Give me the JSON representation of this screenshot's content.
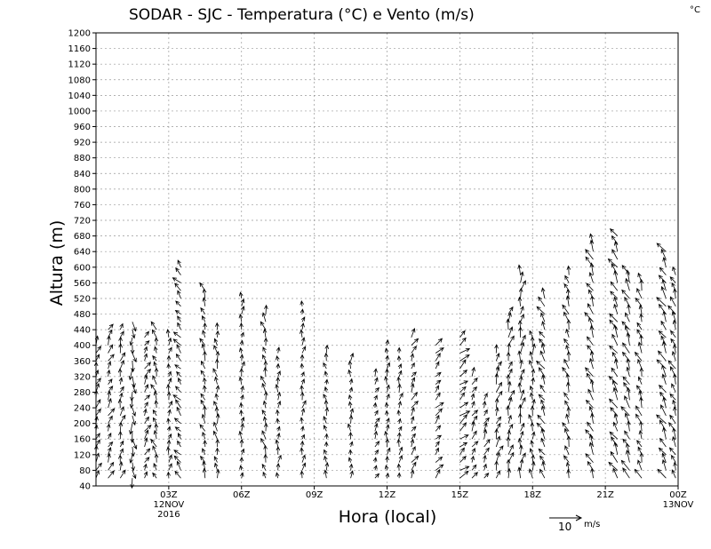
{
  "chart_data": {
    "type": "vector-field",
    "title": "SODAR - SJC - Temperatura (°C) e Vento (m/s)",
    "unit_corner": "°C",
    "xlabel": "Hora (local)",
    "ylabel": "Altura (m)",
    "ylim": [
      40,
      1200
    ],
    "yticks": [
      40,
      80,
      120,
      160,
      200,
      240,
      280,
      320,
      360,
      400,
      440,
      480,
      520,
      560,
      600,
      640,
      680,
      720,
      760,
      800,
      840,
      880,
      920,
      960,
      1000,
      1040,
      1080,
      1120,
      1160,
      1200
    ],
    "xlim_hours": [
      0,
      24
    ],
    "xticks": [
      {
        "hour": 3,
        "label": "03Z",
        "sub1": "12NOV",
        "sub2": "2016"
      },
      {
        "hour": 6,
        "label": "06Z",
        "sub1": "",
        "sub2": ""
      },
      {
        "hour": 9,
        "label": "09Z",
        "sub1": "",
        "sub2": ""
      },
      {
        "hour": 12,
        "label": "12Z",
        "sub1": "",
        "sub2": ""
      },
      {
        "hour": 15,
        "label": "15Z",
        "sub1": "",
        "sub2": ""
      },
      {
        "hour": 18,
        "label": "18Z",
        "sub1": "",
        "sub2": ""
      },
      {
        "hour": 21,
        "label": "21Z",
        "sub1": "",
        "sub2": ""
      },
      {
        "hour": 24,
        "label": "00Z",
        "sub1": "13NOV",
        "sub2": ""
      }
    ],
    "grid": true,
    "reference_vector": {
      "value": 10,
      "unit": "m/s",
      "label": "10"
    },
    "height_step_m": 20,
    "wind_profiles": [
      {
        "hour": 0.0,
        "top_m": 400,
        "speed_ms": 2.5,
        "dir_deg": 20
      },
      {
        "hour": 0.5,
        "top_m": 440,
        "speed_ms": 2.5,
        "dir_deg": 25
      },
      {
        "hour": 1.0,
        "top_m": 440,
        "speed_ms": 2.5,
        "dir_deg": 15
      },
      {
        "hour": 1.5,
        "top_m": 470,
        "speed_ms": 3.0,
        "dir_deg": 175
      },
      {
        "hour": 2.0,
        "top_m": 420,
        "speed_ms": 2.5,
        "dir_deg": 30
      },
      {
        "hour": 2.5,
        "top_m": 440,
        "speed_ms": 2.5,
        "dir_deg": 340
      },
      {
        "hour": 3.0,
        "top_m": 420,
        "speed_ms": 2.0,
        "dir_deg": 10
      },
      {
        "hour": 3.5,
        "top_m": 600,
        "speed_ms": 2.5,
        "dir_deg": 320
      },
      {
        "hour": 4.5,
        "top_m": 540,
        "speed_ms": 2.5,
        "dir_deg": 340
      },
      {
        "hour": 5.0,
        "top_m": 440,
        "speed_ms": 2.5,
        "dir_deg": 350
      },
      {
        "hour": 6.0,
        "top_m": 520,
        "speed_ms": 2.0,
        "dir_deg": 5
      },
      {
        "hour": 7.0,
        "top_m": 480,
        "speed_ms": 2.5,
        "dir_deg": 345
      },
      {
        "hour": 7.5,
        "top_m": 380,
        "speed_ms": 2.0,
        "dir_deg": 5
      },
      {
        "hour": 8.5,
        "top_m": 500,
        "speed_ms": 2.0,
        "dir_deg": 10
      },
      {
        "hour": 9.5,
        "top_m": 380,
        "speed_ms": 2.0,
        "dir_deg": 350
      },
      {
        "hour": 10.5,
        "top_m": 360,
        "speed_ms": 2.0,
        "dir_deg": 0
      },
      {
        "hour": 11.5,
        "top_m": 330,
        "speed_ms": 2.0,
        "dir_deg": 25
      },
      {
        "hour": 12.0,
        "top_m": 400,
        "speed_ms": 2.0,
        "dir_deg": 5
      },
      {
        "hour": 12.5,
        "top_m": 380,
        "speed_ms": 2.0,
        "dir_deg": 10
      },
      {
        "hour": 13.0,
        "top_m": 420,
        "speed_ms": 2.5,
        "dir_deg": 30
      },
      {
        "hour": 14.0,
        "top_m": 400,
        "speed_ms": 2.5,
        "dir_deg": 40
      },
      {
        "hour": 15.0,
        "top_m": 420,
        "speed_ms": 3.0,
        "dir_deg": 50
      },
      {
        "hour": 15.5,
        "top_m": 320,
        "speed_ms": 2.5,
        "dir_deg": 30
      },
      {
        "hour": 16.0,
        "top_m": 260,
        "speed_ms": 2.5,
        "dir_deg": 25
      },
      {
        "hour": 16.5,
        "top_m": 390,
        "speed_ms": 3.0,
        "dir_deg": 20
      },
      {
        "hour": 17.0,
        "top_m": 480,
        "speed_ms": 3.0,
        "dir_deg": 15
      },
      {
        "hour": 17.5,
        "top_m": 580,
        "speed_ms": 3.0,
        "dir_deg": 10
      },
      {
        "hour": 18.0,
        "top_m": 430,
        "speed_ms": 2.5,
        "dir_deg": 355
      },
      {
        "hour": 18.5,
        "top_m": 520,
        "speed_ms": 3.0,
        "dir_deg": 330
      },
      {
        "hour": 19.5,
        "top_m": 580,
        "speed_ms": 3.0,
        "dir_deg": 340
      },
      {
        "hour": 20.5,
        "top_m": 660,
        "speed_ms": 3.5,
        "dir_deg": 335
      },
      {
        "hour": 21.5,
        "top_m": 680,
        "speed_ms": 3.5,
        "dir_deg": 330
      },
      {
        "hour": 22.0,
        "top_m": 580,
        "speed_ms": 3.5,
        "dir_deg": 335
      },
      {
        "hour": 22.5,
        "top_m": 560,
        "speed_ms": 3.0,
        "dir_deg": 340
      },
      {
        "hour": 23.5,
        "top_m": 640,
        "speed_ms": 3.5,
        "dir_deg": 330
      },
      {
        "hour": 23.9,
        "top_m": 580,
        "speed_ms": 3.0,
        "dir_deg": 335
      }
    ]
  }
}
